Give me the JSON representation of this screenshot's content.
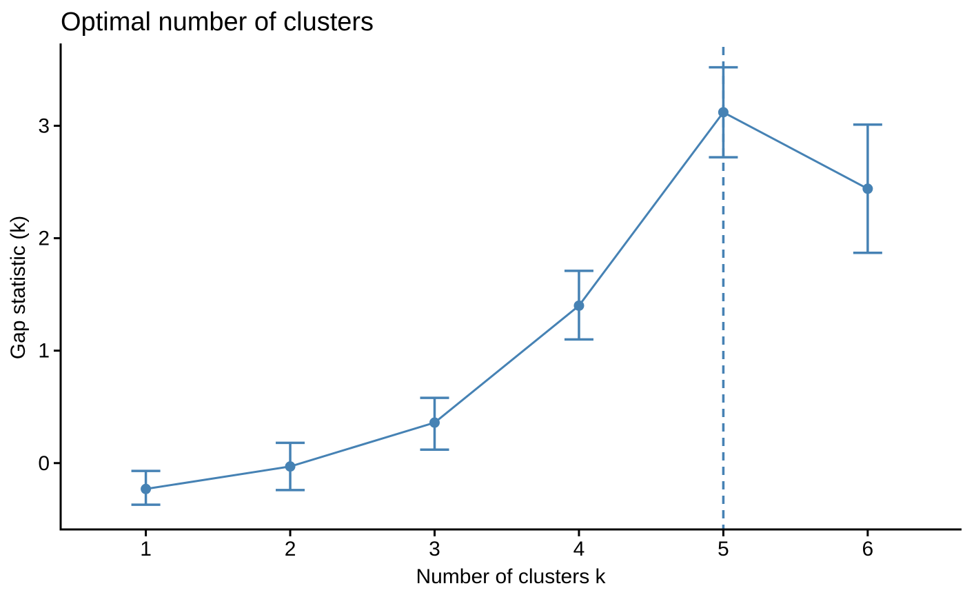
{
  "page": {
    "background": "#ffffff"
  },
  "chart_data": {
    "type": "line",
    "title": "Optimal number of clusters",
    "xlabel": "Number of clusters k",
    "ylabel": "Gap statistic (k)",
    "x": [
      1,
      2,
      3,
      4,
      5,
      6
    ],
    "x_tick_labels": [
      "1",
      "2",
      "3",
      "4",
      "5",
      "6"
    ],
    "y_tick_values": [
      0,
      1,
      2,
      3
    ],
    "y_tick_labels": [
      "0",
      "1",
      "2",
      "3"
    ],
    "xlim": [
      0.41,
      6.65
    ],
    "ylim": [
      -0.59,
      3.72
    ],
    "grid": false,
    "legend": "none",
    "series": [
      {
        "name": "Gap statistic",
        "values": [
          -0.23,
          -0.03,
          0.36,
          1.4,
          3.12,
          2.44
        ],
        "ymin": [
          -0.37,
          -0.24,
          0.12,
          1.1,
          2.72,
          1.87
        ],
        "ymax": [
          -0.07,
          0.18,
          0.58,
          1.71,
          3.52,
          3.01
        ]
      }
    ],
    "annotations": {
      "optimal_k_vline": {
        "x": 5,
        "style": "dashed"
      }
    },
    "colors": {
      "series": "#4682B4",
      "axis": "#000000",
      "text": "#000000"
    }
  }
}
